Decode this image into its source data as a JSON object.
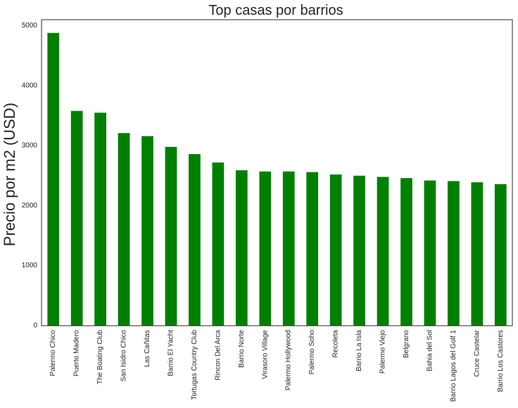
{
  "chart_data": {
    "type": "bar",
    "title": "Top casas por barrios",
    "xlabel": "",
    "ylabel": "Precio por m2 (USD)",
    "categories": [
      "Palermo Chico",
      "Puerto Madero",
      "The Boating Club",
      "San Isidro Chico",
      "Las Cañitas",
      "Barrio El Yacht",
      "Tortugas Country Club",
      "Rincon Del Arca",
      "Barrio Norte",
      "Virasoro Village",
      "Palermo Hollywood",
      "Palermo Soho",
      "Recoleta",
      "Barrio La Isla",
      "Palermo Viejo",
      "Belgrano",
      "Bahia del Sol",
      "Barrio Lagos del Golf 1",
      "Cruce Castelar",
      "Barrio Los Castores"
    ],
    "values": [
      4880,
      3580,
      3550,
      3210,
      3160,
      2980,
      2860,
      2720,
      2590,
      2570,
      2570,
      2560,
      2520,
      2500,
      2480,
      2460,
      2420,
      2410,
      2390,
      2360
    ],
    "yticks": [
      0,
      1000,
      2000,
      3000,
      4000,
      5000
    ],
    "ylim": [
      0,
      5100
    ],
    "grid": false,
    "legend": "none",
    "bar_color": "#008000"
  }
}
